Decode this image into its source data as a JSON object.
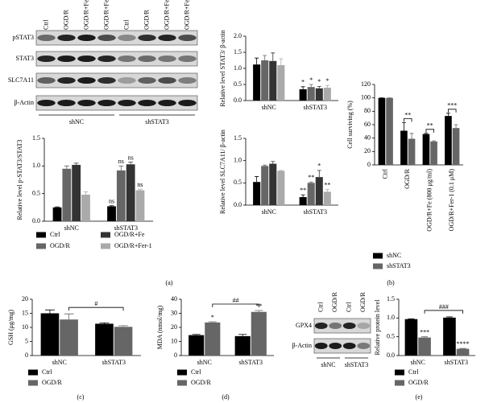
{
  "blots": [
    {
      "columns": [
        "Ctrl",
        "OGD/R",
        "OGD/R+Fe",
        "OGD/R+Fer-1",
        "Ctrl",
        "OGD/R",
        "OGD/R+Fe",
        "OGD/R+Fer-1"
      ],
      "rows": [
        "pSTAT3",
        "STAT3",
        "SLC7A11",
        "β-Actin"
      ],
      "groups": [
        "shNC",
        "shSTAT3"
      ]
    },
    {
      "columns": [
        "Ctrl",
        "OGD/R",
        "Ctrl",
        "OGD/R"
      ],
      "rows": [
        "GPX4",
        "β-Actin"
      ],
      "groups": [
        "shNC",
        "shSTAT3"
      ]
    }
  ],
  "panel_labels": [
    "(a)",
    "(b)",
    "(c)",
    "(d)",
    "(e)"
  ],
  "chart_data": [
    {
      "type": "bar",
      "ylabel": "Relative level p-STAT3/STAT3",
      "categories": [
        "shNC",
        "shSTAT3"
      ],
      "ylim": [
        0,
        1.5
      ],
      "yticks": [
        {
          "value": 0,
          "label": "0.0"
        },
        {
          "value": 0.5,
          "label": "0.5"
        },
        {
          "value": 1,
          "label": "1.0"
        },
        {
          "value": 1.5,
          "label": "1.5"
        }
      ],
      "series": [
        {
          "name": "Ctrl",
          "color": "#000000",
          "values": [
            0.25,
            0.27
          ],
          "errors": [
            0.01,
            0.01
          ],
          "significance": [
            null,
            "ns"
          ]
        },
        {
          "name": "OGD/R",
          "color": "#666666",
          "values": [
            0.95,
            0.92
          ],
          "errors": [
            0.05,
            0.08
          ],
          "significance": [
            null,
            "ns"
          ]
        },
        {
          "name": "OGD/R+Fe",
          "color": "#333333",
          "values": [
            1.02,
            1.03
          ],
          "errors": [
            0.03,
            0.04
          ],
          "significance": [
            null,
            "ns"
          ]
        },
        {
          "name": "OGD/R+Fer-1",
          "color": "#aaaaaa",
          "values": [
            0.48,
            0.56
          ],
          "errors": [
            0.05,
            0.02
          ],
          "significance": [
            null,
            "ns"
          ]
        }
      ]
    },
    {
      "type": "bar",
      "ylabel": "Relative level STAT3/ β-actin",
      "categories": [
        "shNC",
        "shSTAT3"
      ],
      "ylim": [
        0,
        2
      ],
      "yticks": [
        {
          "value": 0,
          "label": "0.0"
        },
        {
          "value": 0.5,
          "label": "0.5"
        },
        {
          "value": 1,
          "label": "1.0"
        },
        {
          "value": 1.5,
          "label": "1.5"
        },
        {
          "value": 2,
          "label": "2.0"
        }
      ],
      "series": [
        {
          "color": "#000000",
          "values": [
            1.12,
            0.35
          ],
          "errors": [
            0.2,
            0.08
          ],
          "significance": [
            null,
            "*"
          ]
        },
        {
          "color": "#666666",
          "values": [
            1.25,
            0.42
          ],
          "errors": [
            0.15,
            0.08
          ],
          "significance": [
            null,
            "*"
          ]
        },
        {
          "color": "#333333",
          "values": [
            1.23,
            0.38
          ],
          "errors": [
            0.25,
            0.06
          ],
          "significance": [
            null,
            "*"
          ]
        },
        {
          "color": "#aaaaaa",
          "values": [
            1.1,
            0.4
          ],
          "errors": [
            0.2,
            0.07
          ],
          "significance": [
            null,
            "*"
          ]
        }
      ]
    },
    {
      "type": "bar",
      "ylabel": "Relative level SLC7A11/ β-actin",
      "categories": [
        "shNC",
        "shSTAT3"
      ],
      "ylim": [
        0,
        1.5
      ],
      "yticks": [
        {
          "value": 0,
          "label": "0.0"
        },
        {
          "value": 0.5,
          "label": "0.5"
        },
        {
          "value": 1,
          "label": "1.0"
        },
        {
          "value": 1.5,
          "label": "1.5"
        }
      ],
      "series": [
        {
          "color": "#000000",
          "values": [
            0.52,
            0.18
          ],
          "errors": [
            0.12,
            0.05
          ],
          "significance": [
            null,
            "**"
          ]
        },
        {
          "color": "#666666",
          "values": [
            0.88,
            0.5
          ],
          "errors": [
            0.02,
            0.02
          ],
          "significance": [
            null,
            "**"
          ]
        },
        {
          "color": "#333333",
          "values": [
            0.93,
            0.63
          ],
          "errors": [
            0.05,
            0.15
          ],
          "significance": [
            null,
            "*"
          ]
        },
        {
          "color": "#aaaaaa",
          "values": [
            0.77,
            0.3
          ],
          "errors": [
            0.01,
            0.05
          ],
          "significance": [
            null,
            "**"
          ]
        }
      ]
    },
    {
      "type": "bar",
      "ylabel": "Cell surviving (%)",
      "categories": [
        "Ctrl",
        "OGD/R",
        "OGD/R+Fe (800 μg/ml)",
        "OGD/R+Fer-1 (0.1 μM)"
      ],
      "ylim": [
        0,
        120
      ],
      "yticks": [
        0,
        20,
        40,
        60,
        80,
        100,
        120
      ],
      "series": [
        {
          "name": "shNC",
          "color": "#000000",
          "values": [
            100,
            51,
            46,
            73
          ],
          "errors": [
            0,
            12,
            1,
            4
          ]
        },
        {
          "name": "shSTAT3",
          "color": "#666666",
          "values": [
            100,
            39,
            35,
            55
          ],
          "errors": [
            0,
            8,
            1,
            5
          ]
        }
      ],
      "brackets": [
        "**",
        "**",
        "***"
      ]
    },
    {
      "type": "bar",
      "ylabel": "GSH (μg/mg)",
      "categories": [
        "shNC",
        "shSTAT3"
      ],
      "ylim": [
        0,
        20
      ],
      "yticks": [
        0,
        5,
        10,
        15,
        20
      ],
      "series": [
        {
          "name": "Ctrl",
          "color": "#000000",
          "values": [
            15,
            11.3
          ],
          "errors": [
            1.2,
            0.3
          ]
        },
        {
          "name": "OGD/R",
          "color": "#666666",
          "values": [
            12.8,
            10.2
          ],
          "errors": [
            2,
            0.4
          ]
        }
      ],
      "brackets": [
        "#"
      ]
    },
    {
      "type": "bar",
      "ylabel": "MDA (nmol/mg)",
      "categories": [
        "shNC",
        "shSTAT3"
      ],
      "ylim": [
        0,
        40
      ],
      "yticks": [
        0,
        10,
        20,
        30,
        40
      ],
      "series": [
        {
          "name": "Ctrl",
          "color": "#000000",
          "values": [
            14.5,
            13.8
          ],
          "errors": [
            0.5,
            1.2
          ]
        },
        {
          "name": "OGD/R",
          "color": "#666666",
          "values": [
            23.5,
            31
          ],
          "errors": [
            0.5,
            1
          ],
          "significance": [
            "*",
            "**"
          ]
        }
      ],
      "brackets": [
        "##"
      ]
    },
    {
      "type": "bar",
      "ylabel": "Relative protein level",
      "categories": [
        "shNC",
        "shSTAT3"
      ],
      "ylim": [
        0,
        1.5
      ],
      "yticks": [
        {
          "value": 0,
          "label": "0.0"
        },
        {
          "value": 0.5,
          "label": "0.5"
        },
        {
          "value": 1,
          "label": "1.0"
        },
        {
          "value": 1.5,
          "label": "1.5"
        }
      ],
      "series": [
        {
          "name": "Ctrl",
          "color": "#000000",
          "values": [
            0.97,
            1.01
          ],
          "errors": [
            0.01,
            0.02
          ]
        },
        {
          "name": "OGD/R",
          "color": "#666666",
          "values": [
            0.48,
            0.18
          ],
          "errors": [
            0.02,
            0.01
          ],
          "significance": [
            "***",
            "****"
          ]
        }
      ],
      "brackets": [
        "###"
      ]
    }
  ]
}
